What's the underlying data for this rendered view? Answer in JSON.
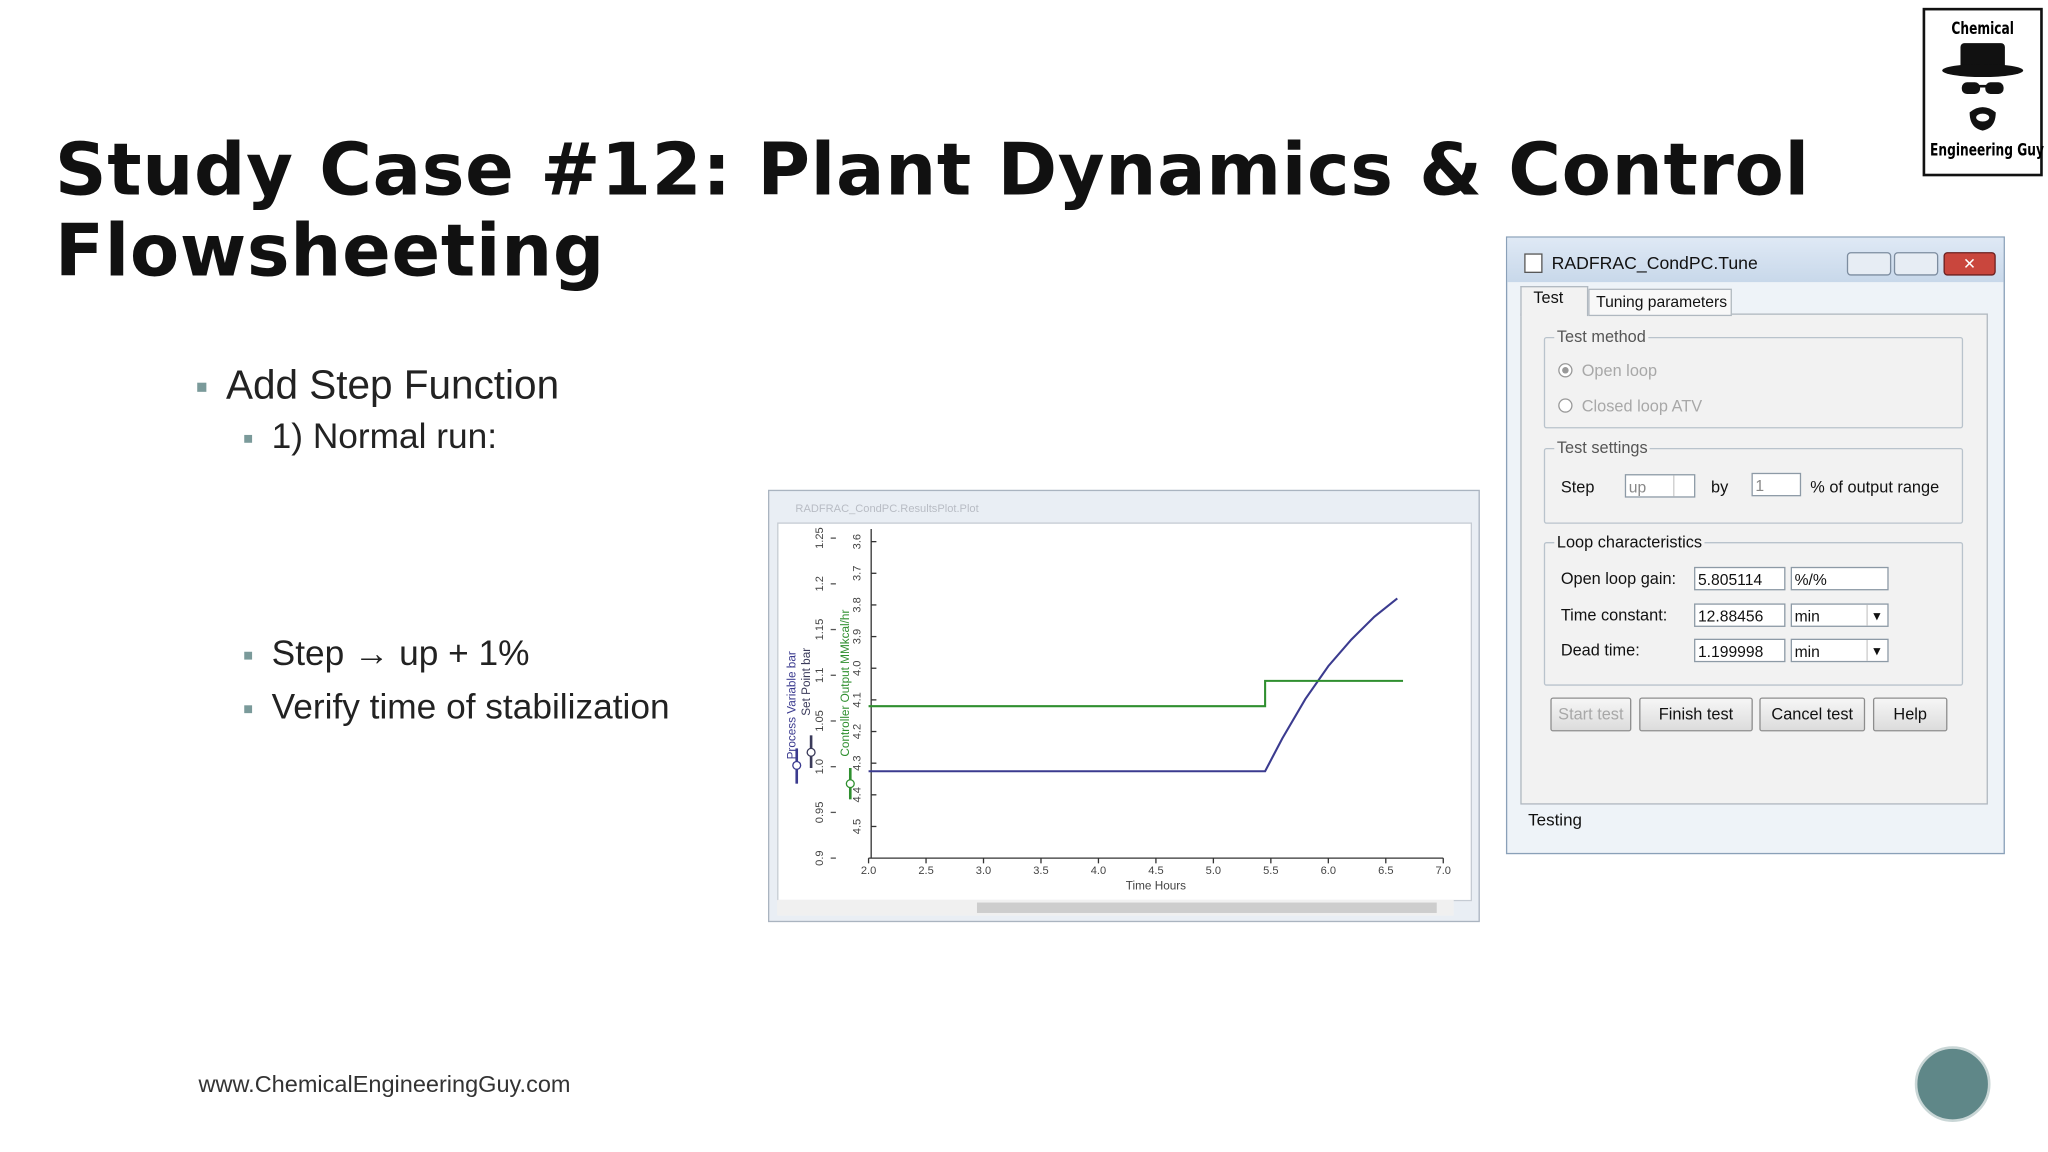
{
  "slide": {
    "title": [
      "Study Case #12: Plant Dynamics & Control",
      "Flowsheeting"
    ],
    "bullets": [
      "Add Step Function",
      "1) Normal run:",
      "Step → up + 1%",
      "Verify time of stabilization"
    ],
    "footer": "www.ChemicalEngineeringGuy.com",
    "logo": [
      "Chemical",
      "Engineering Guy"
    ]
  },
  "plot_window": {
    "title": "RADFRAC_CondPC.ResultsPlot.Plot",
    "chart": {
      "type": "line",
      "x_label": "Time Hours",
      "setpoint_label": "Set Point bar",
      "xlim": [
        2,
        7
      ],
      "xticks": [
        {
          "value": 2,
          "label": "2.0"
        },
        2.5,
        {
          "value": 3,
          "label": "3.0"
        },
        3.5,
        {
          "value": 4,
          "label": "4.0"
        },
        4.5,
        {
          "value": 5,
          "label": "5.0"
        },
        5.5,
        {
          "value": 6,
          "label": "6.0"
        },
        6.5,
        {
          "value": 7,
          "label": "7.0"
        }
      ],
      "ylim": [
        0.9,
        1.26
      ],
      "yticks": [
        0.9,
        0.95,
        {
          "value": 1,
          "label": "1.0"
        },
        1.05,
        1.1,
        1.15,
        1.2,
        1.25
      ],
      "y2lim": [
        4.6,
        3.56
      ],
      "y2ticks": [
        4.5,
        4.4,
        4.3,
        4.2,
        4.1,
        {
          "value": 4,
          "label": "4.0"
        },
        3.9,
        3.8,
        3.7,
        3.6
      ],
      "series": [
        {
          "name": "Process Variable bar",
          "color": "#3b3b8f",
          "x": [
            2,
            5.45,
            5.6,
            5.8,
            6.0,
            6.2,
            6.4,
            6.6
          ],
          "values": [
            0.995,
            0.995,
            1.031,
            1.074,
            1.11,
            1.139,
            1.164,
            1.184
          ]
        },
        {
          "name": "Controller Output MMkcal/hr",
          "color": "#2f8f2f",
          "axis": "y2",
          "x": [
            2,
            5.45,
            5.45,
            6.65
          ],
          "values": [
            4.12,
            4.12,
            4.04,
            4.04
          ]
        }
      ]
    }
  },
  "dialog": {
    "title": "RADFRAC_CondPC.Tune",
    "tabs": [
      "Test",
      "Tuning parameters"
    ],
    "test_method": {
      "label": "Test method",
      "options": [
        "Open loop",
        "Closed loop ATV"
      ]
    },
    "test_settings": {
      "label": "Test settings",
      "step_label": "Step",
      "direction": "up",
      "by_label": "by",
      "amount": 1,
      "unit": "% of output range"
    },
    "loop_characteristics": {
      "label": "Loop characteristics",
      "rows": [
        {
          "label": "Open loop gain:",
          "value": 5.805114,
          "unit": "%/%"
        },
        {
          "label": "Time constant:",
          "value": 12.88456,
          "unit": "min"
        },
        {
          "label": "Dead time:",
          "value": 1.199998,
          "unit": "min"
        }
      ]
    },
    "buttons": [
      "Start test",
      "Finish test",
      "Cancel test",
      "Help"
    ],
    "status": "Testing"
  }
}
